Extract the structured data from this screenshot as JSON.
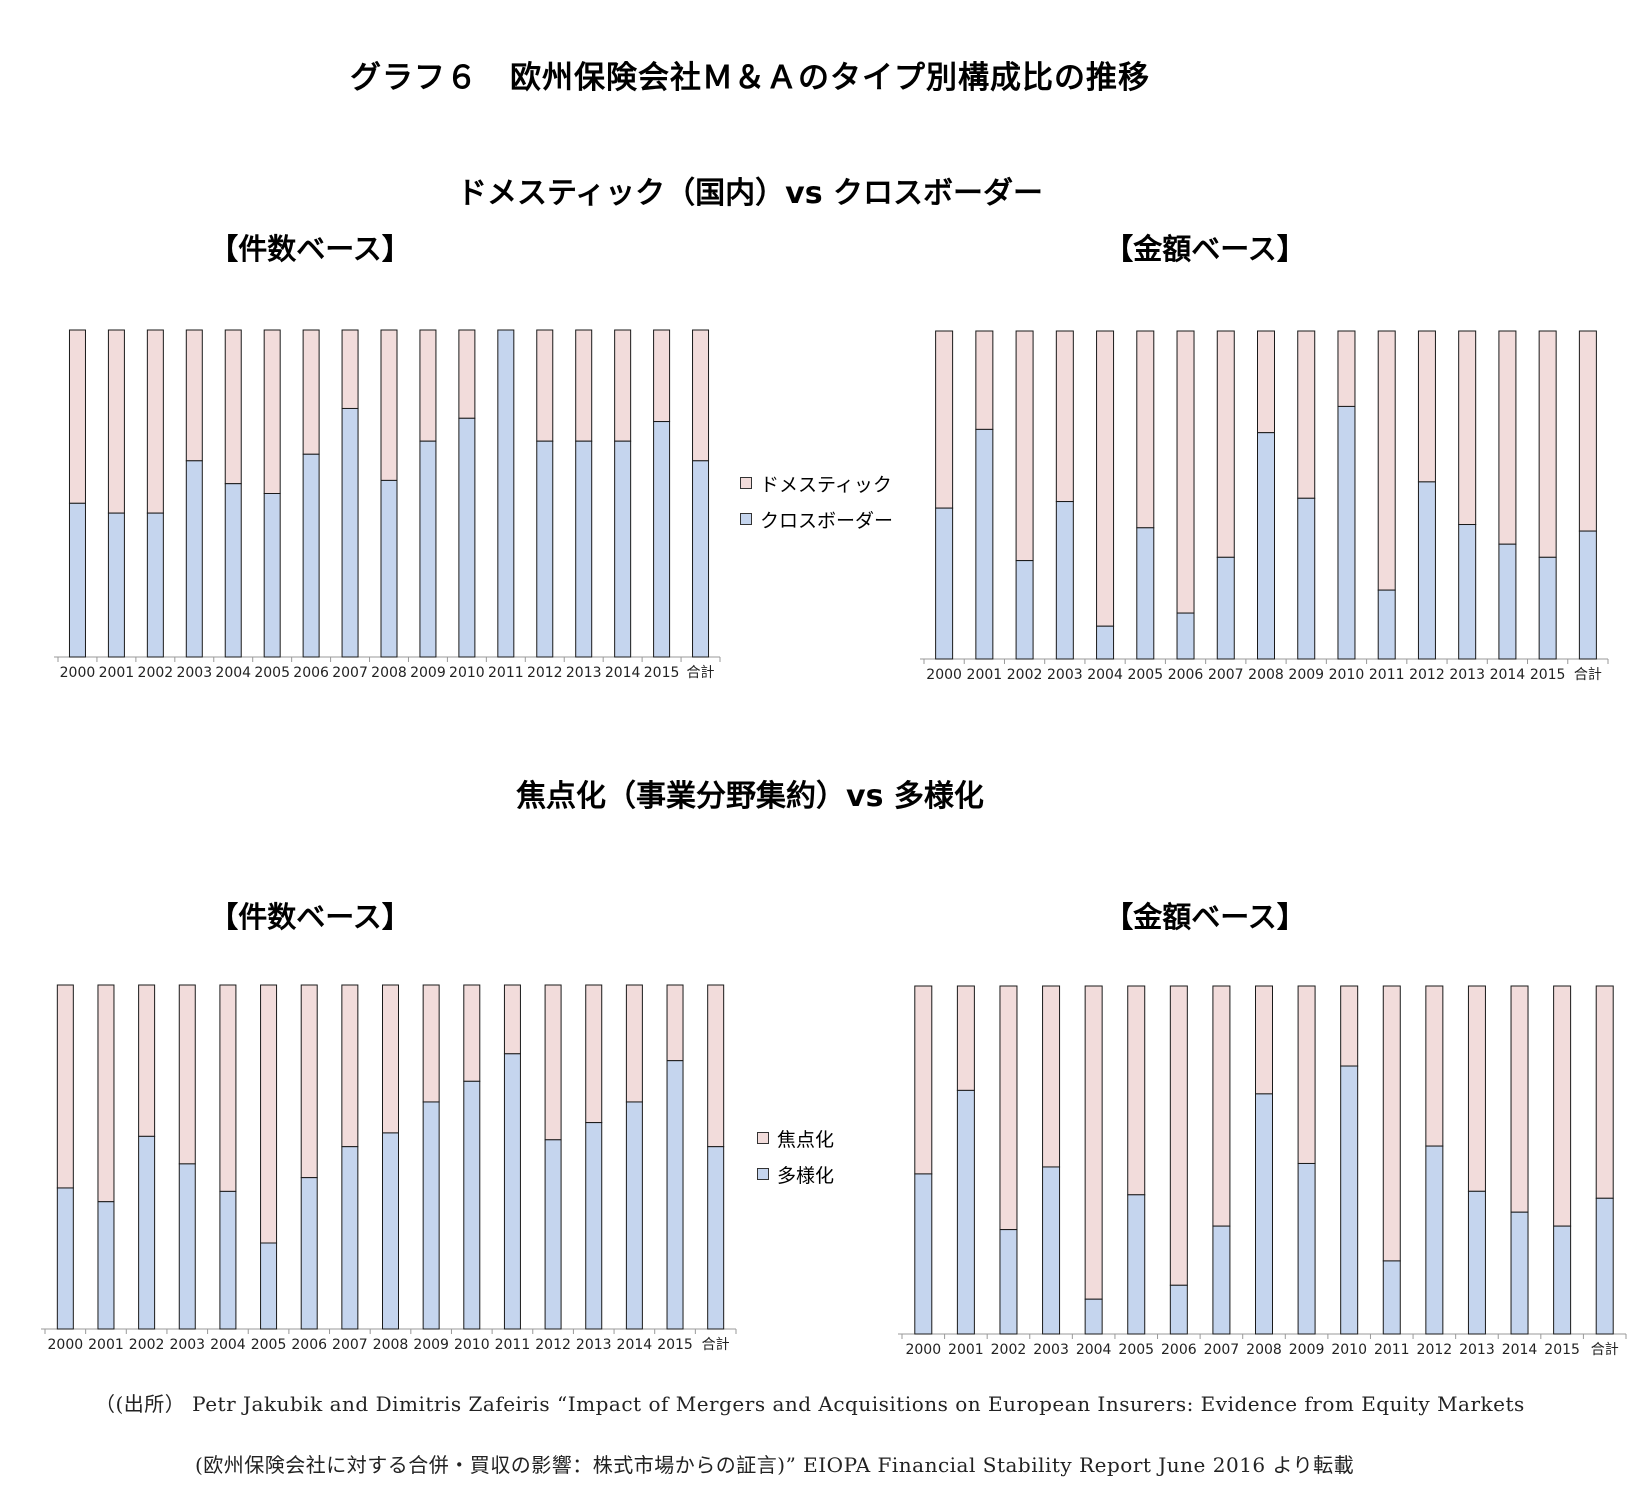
{
  "title": "グラフ６　欧州保険会社Ｍ＆Ａのタイプ別構成比の推移",
  "sections": [
    {
      "title": "ドメスティック（国内）vs クロスボーダー",
      "legend": [
        {
          "label": "ドメスティック",
          "color": "#f2dcdb"
        },
        {
          "label": "クロスボーダー",
          "color": "#c5d5ee"
        }
      ]
    },
    {
      "title": "焦点化（事業分野集約）vs 多様化",
      "legend": [
        {
          "label": "焦点化",
          "color": "#f2dcdb"
        },
        {
          "label": "多様化",
          "color": "#c5d5ee"
        }
      ]
    }
  ],
  "subtitles": {
    "count": "【件数ベース】",
    "value": "【金額ベース】"
  },
  "colors": {
    "top": "#f2dcdb",
    "bottom": "#c5d5ee",
    "outline": "#1a1a1a"
  },
  "source": {
    "line1": "（(出所）  Petr Jakubik and Dimitris Zafeiris  “Impact of Mergers and Acquisitions on European Insurers: Evidence from Equity Markets",
    "line2": "(欧州保険会社に対する合併・買収の影響：株式市場からの証言)”  EIOPA Financial Stability Report June 2016 より転載"
  },
  "chart_data": [
    {
      "type": "bar",
      "stacked": true,
      "title": "【件数ベース】",
      "categories": [
        "2000",
        "2001",
        "2002",
        "2003",
        "2004",
        "2005",
        "2006",
        "2007",
        "2008",
        "2009",
        "2010",
        "2011",
        "2012",
        "2013",
        "2014",
        "2015",
        "合計"
      ],
      "ylim": [
        0,
        100
      ],
      "series": [
        {
          "name": "クロスボーダー",
          "values": [
            47,
            44,
            44,
            60,
            53,
            50,
            62,
            76,
            54,
            66,
            73,
            100,
            66,
            66,
            66,
            72,
            60
          ]
        },
        {
          "name": "ドメスティック",
          "values": [
            53,
            56,
            56,
            40,
            47,
            50,
            38,
            24,
            46,
            34,
            27,
            0,
            34,
            34,
            34,
            28,
            40
          ]
        }
      ]
    },
    {
      "type": "bar",
      "stacked": true,
      "title": "【金額ベース】",
      "categories": [
        "2000",
        "2001",
        "2002",
        "2003",
        "2004",
        "2005",
        "2006",
        "2007",
        "2008",
        "2009",
        "2010",
        "2011",
        "2012",
        "2013",
        "2014",
        "2015",
        "合計"
      ],
      "ylim": [
        0,
        100
      ],
      "series": [
        {
          "name": "クロスボーダー",
          "values": [
            46,
            70,
            30,
            48,
            10,
            40,
            14,
            31,
            69,
            49,
            77,
            21,
            54,
            41,
            35,
            31,
            39
          ]
        },
        {
          "name": "ドメスティック",
          "values": [
            54,
            30,
            70,
            52,
            90,
            60,
            86,
            69,
            31,
            51,
            23,
            79,
            46,
            59,
            65,
            69,
            61
          ]
        }
      ]
    },
    {
      "type": "bar",
      "stacked": true,
      "title": "【件数ベース】",
      "categories": [
        "2000",
        "2001",
        "2002",
        "2003",
        "2004",
        "2005",
        "2006",
        "2007",
        "2008",
        "2009",
        "2010",
        "2011",
        "2012",
        "2013",
        "2014",
        "2015",
        "合計"
      ],
      "ylim": [
        0,
        100
      ],
      "series": [
        {
          "name": "多様化",
          "values": [
            41,
            37,
            56,
            48,
            40,
            25,
            44,
            53,
            57,
            66,
            72,
            80,
            55,
            60,
            66,
            78,
            53
          ]
        },
        {
          "name": "焦点化",
          "values": [
            59,
            63,
            44,
            52,
            60,
            75,
            56,
            47,
            43,
            34,
            28,
            20,
            45,
            40,
            34,
            22,
            47
          ]
        }
      ]
    },
    {
      "type": "bar",
      "stacked": true,
      "title": "【金額ベース】",
      "categories": [
        "2000",
        "2001",
        "2002",
        "2003",
        "2004",
        "2005",
        "2006",
        "2007",
        "2008",
        "2009",
        "2010",
        "2011",
        "2012",
        "2013",
        "2014",
        "2015",
        "合計"
      ],
      "ylim": [
        0,
        100
      ],
      "series": [
        {
          "name": "多様化",
          "values": [
            46,
            70,
            30,
            48,
            10,
            40,
            14,
            31,
            69,
            49,
            77,
            21,
            54,
            41,
            35,
            31,
            39
          ]
        },
        {
          "name": "焦点化",
          "values": [
            54,
            30,
            70,
            52,
            90,
            60,
            86,
            69,
            31,
            51,
            23,
            79,
            46,
            59,
            65,
            69,
            61
          ]
        }
      ]
    }
  ]
}
